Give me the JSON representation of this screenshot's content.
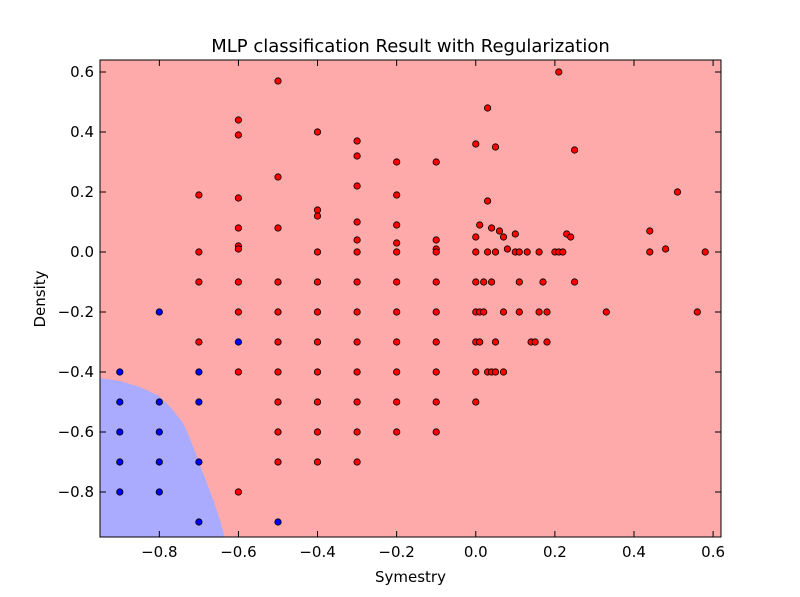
{
  "chart_data": {
    "type": "scatter",
    "title": "MLP classification Result with Regularization",
    "xlabel": "Symestry",
    "ylabel": "Density",
    "xlim": [
      -0.95,
      0.62
    ],
    "ylim": [
      -0.95,
      0.64
    ],
    "xticks": [
      -0.8,
      -0.6,
      -0.4,
      -0.2,
      0.0,
      0.2,
      0.4,
      0.6
    ],
    "xtick_labels": [
      "−0.8",
      "−0.6",
      "−0.4",
      "−0.2",
      "0.0",
      "0.2",
      "0.4",
      "0.6"
    ],
    "yticks": [
      -0.8,
      -0.6,
      -0.4,
      -0.2,
      0.0,
      0.2,
      0.4,
      0.6
    ],
    "ytick_labels": [
      "−0.8",
      "−0.6",
      "−0.4",
      "−0.2",
      "0.0",
      "0.2",
      "0.4",
      "0.6"
    ],
    "grid": false,
    "region_colors": {
      "red": "#ffaaaa",
      "blue": "#aaaaff"
    },
    "decision_boundary": [
      [
        -0.95,
        -0.42
      ],
      [
        -0.9,
        -0.43
      ],
      [
        -0.85,
        -0.45
      ],
      [
        -0.8,
        -0.48
      ],
      [
        -0.77,
        -0.52
      ],
      [
        -0.74,
        -0.57
      ],
      [
        -0.72,
        -0.63
      ],
      [
        -0.7,
        -0.7
      ],
      [
        -0.68,
        -0.77
      ],
      [
        -0.66,
        -0.84
      ],
      [
        -0.645,
        -0.9
      ],
      [
        -0.635,
        -0.95
      ]
    ],
    "series": [
      {
        "color": "#ff0000",
        "points": [
          [
            0.21,
            0.6
          ],
          [
            0.03,
            0.48
          ],
          [
            0.05,
            0.35
          ],
          [
            0.0,
            0.36
          ],
          [
            0.25,
            0.34
          ],
          [
            0.03,
            0.17
          ],
          [
            0.51,
            0.2
          ],
          [
            0.01,
            0.09
          ],
          [
            0.04,
            0.08
          ],
          [
            0.06,
            0.07
          ],
          [
            0.07,
            0.05
          ],
          [
            0.1,
            0.06
          ],
          [
            0.0,
            0.05
          ],
          [
            0.23,
            0.06
          ],
          [
            0.24,
            0.05
          ],
          [
            0.44,
            0.07
          ],
          [
            0.48,
            0.01
          ],
          [
            0.58,
            0.0
          ],
          [
            0.44,
            0.0
          ],
          [
            0.08,
            0.01
          ],
          [
            0.0,
            0.0
          ],
          [
            0.03,
            0.0
          ],
          [
            0.05,
            0.0
          ],
          [
            0.1,
            0.0
          ],
          [
            0.11,
            0.0
          ],
          [
            0.13,
            0.0
          ],
          [
            0.16,
            0.0
          ],
          [
            0.2,
            0.0
          ],
          [
            0.21,
            0.0
          ],
          [
            0.22,
            0.0
          ],
          [
            0.0,
            -0.1
          ],
          [
            0.02,
            -0.1
          ],
          [
            0.04,
            -0.1
          ],
          [
            0.11,
            -0.1
          ],
          [
            0.17,
            -0.1
          ],
          [
            0.25,
            -0.1
          ],
          [
            0.0,
            -0.2
          ],
          [
            0.01,
            -0.2
          ],
          [
            0.02,
            -0.2
          ],
          [
            0.07,
            -0.2
          ],
          [
            0.11,
            -0.2
          ],
          [
            0.16,
            -0.2
          ],
          [
            0.18,
            -0.2
          ],
          [
            0.33,
            -0.2
          ],
          [
            0.56,
            -0.2
          ],
          [
            0.0,
            -0.3
          ],
          [
            0.01,
            -0.3
          ],
          [
            0.05,
            -0.3
          ],
          [
            0.14,
            -0.3
          ],
          [
            0.15,
            -0.3
          ],
          [
            0.18,
            -0.3
          ],
          [
            0.0,
            -0.4
          ],
          [
            0.03,
            -0.4
          ],
          [
            0.04,
            -0.4
          ],
          [
            0.05,
            -0.4
          ],
          [
            0.07,
            -0.4
          ],
          [
            0.0,
            -0.5
          ],
          [
            -0.1,
            0.3
          ],
          [
            -0.1,
            0.04
          ],
          [
            -0.1,
            0.01
          ],
          [
            -0.1,
            0.0
          ],
          [
            -0.1,
            -0.1
          ],
          [
            -0.1,
            -0.2
          ],
          [
            -0.1,
            -0.3
          ],
          [
            -0.1,
            -0.4
          ],
          [
            -0.1,
            -0.5
          ],
          [
            -0.1,
            -0.6
          ],
          [
            -0.2,
            0.3
          ],
          [
            -0.2,
            0.19
          ],
          [
            -0.2,
            0.09
          ],
          [
            -0.2,
            0.03
          ],
          [
            -0.2,
            0.0
          ],
          [
            -0.2,
            -0.1
          ],
          [
            -0.2,
            -0.2
          ],
          [
            -0.2,
            -0.3
          ],
          [
            -0.2,
            -0.4
          ],
          [
            -0.2,
            -0.5
          ],
          [
            -0.2,
            -0.6
          ],
          [
            -0.3,
            0.37
          ],
          [
            -0.3,
            0.32
          ],
          [
            -0.3,
            0.22
          ],
          [
            -0.3,
            0.1
          ],
          [
            -0.3,
            0.04
          ],
          [
            -0.3,
            0.0
          ],
          [
            -0.3,
            -0.1
          ],
          [
            -0.3,
            -0.2
          ],
          [
            -0.3,
            -0.3
          ],
          [
            -0.3,
            -0.4
          ],
          [
            -0.3,
            -0.5
          ],
          [
            -0.3,
            -0.6
          ],
          [
            -0.3,
            -0.7
          ],
          [
            -0.4,
            0.4
          ],
          [
            -0.4,
            0.14
          ],
          [
            -0.4,
            0.12
          ],
          [
            -0.4,
            0.0
          ],
          [
            -0.4,
            -0.1
          ],
          [
            -0.4,
            -0.2
          ],
          [
            -0.4,
            -0.3
          ],
          [
            -0.4,
            -0.4
          ],
          [
            -0.4,
            -0.5
          ],
          [
            -0.4,
            -0.6
          ],
          [
            -0.4,
            -0.7
          ],
          [
            -0.5,
            0.57
          ],
          [
            -0.5,
            0.25
          ],
          [
            -0.5,
            0.08
          ],
          [
            -0.5,
            -0.1
          ],
          [
            -0.5,
            -0.2
          ],
          [
            -0.5,
            -0.3
          ],
          [
            -0.5,
            -0.4
          ],
          [
            -0.5,
            -0.5
          ],
          [
            -0.5,
            -0.6
          ],
          [
            -0.5,
            -0.7
          ],
          [
            -0.6,
            0.44
          ],
          [
            -0.6,
            0.39
          ],
          [
            -0.6,
            0.18
          ],
          [
            -0.6,
            0.08
          ],
          [
            -0.6,
            0.02
          ],
          [
            -0.6,
            0.01
          ],
          [
            -0.6,
            -0.1
          ],
          [
            -0.6,
            -0.2
          ],
          [
            -0.6,
            -0.4
          ],
          [
            -0.6,
            -0.8
          ],
          [
            -0.7,
            0.19
          ],
          [
            -0.7,
            0.0
          ],
          [
            -0.7,
            -0.1
          ],
          [
            -0.7,
            -0.3
          ]
        ]
      },
      {
        "color": "#0000ff",
        "points": [
          [
            -0.8,
            -0.2
          ],
          [
            -0.6,
            -0.3
          ],
          [
            -0.9,
            -0.4
          ],
          [
            -0.7,
            -0.4
          ],
          [
            -0.9,
            -0.5
          ],
          [
            -0.8,
            -0.5
          ],
          [
            -0.7,
            -0.5
          ],
          [
            -0.9,
            -0.6
          ],
          [
            -0.8,
            -0.6
          ],
          [
            -0.9,
            -0.7
          ],
          [
            -0.8,
            -0.7
          ],
          [
            -0.7,
            -0.7
          ],
          [
            -0.9,
            -0.8
          ],
          [
            -0.8,
            -0.8
          ],
          [
            -0.7,
            -0.9
          ],
          [
            -0.5,
            -0.9
          ]
        ]
      }
    ]
  }
}
